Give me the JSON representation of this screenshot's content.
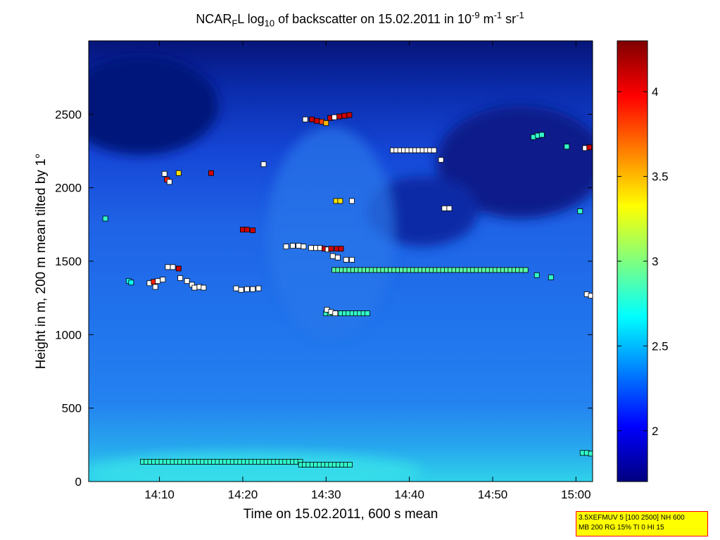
{
  "chart_data": {
    "type": "heatmap",
    "title_parts": {
      "a": "NCAR",
      "b": "F",
      "c": "L log",
      "d": "10",
      "e": " of backscatter on 15.02.2011 in 10",
      "f": "-9",
      "g": " m",
      "h": "-1",
      "i": " sr",
      "j": "-1"
    },
    "xlabel": "Time on 15.02.2011, 600 s mean",
    "ylabel": "Height in m, 200 m mean tilted by 1°",
    "xlim_minutes": [
      841.5,
      902
    ],
    "ylim": [
      0,
      3000
    ],
    "x_ticks": [
      {
        "label": "14:10",
        "min": 850
      },
      {
        "label": "14:20",
        "min": 860
      },
      {
        "label": "14:30",
        "min": 870
      },
      {
        "label": "14:40",
        "min": 880
      },
      {
        "label": "14:50",
        "min": 890
      },
      {
        "label": "15:00",
        "min": 900
      }
    ],
    "y_ticks": [
      0,
      500,
      1000,
      1500,
      2000,
      2500
    ],
    "colorbar": {
      "range": [
        1.7,
        4.3
      ],
      "ticks": [
        2,
        2.5,
        3,
        3.5,
        4
      ],
      "colormap": "jet"
    },
    "cloud_layers": [
      {
        "name": "surface layer",
        "min_start": 848,
        "min_end": 867,
        "height": 135,
        "value": 2.8
      },
      {
        "name": "surface layer",
        "min_start": 867,
        "min_end": 873,
        "height": 115,
        "value": 2.8
      },
      {
        "name": "layer 1450 m",
        "min_start": 871,
        "min_end": 894,
        "height": 1440,
        "value": 2.9
      },
      {
        "name": "layer 1150 m",
        "min_start": 870,
        "min_end": 875,
        "height": 1145,
        "value": 2.8
      },
      {
        "name": "layer 2250 m",
        "min_start": 878,
        "min_end": 883,
        "height": 2255,
        "value": 4.4
      }
    ],
    "cloud_points": [
      [
        843.5,
        1790,
        2.8
      ],
      [
        846.3,
        1365,
        2.7
      ],
      [
        846.6,
        1355,
        2.7
      ],
      [
        848.8,
        1350,
        4.4
      ],
      [
        849.3,
        1360,
        3.9
      ],
      [
        849.5,
        1325,
        4.4
      ],
      [
        849.8,
        1365,
        4.4
      ],
      [
        850.4,
        1375,
        4.4
      ],
      [
        850.6,
        2095,
        4.4
      ],
      [
        850.9,
        2055,
        3.9
      ],
      [
        851.2,
        2040,
        4.4
      ],
      [
        851.0,
        1460,
        4.4
      ],
      [
        851.6,
        1460,
        4.4
      ],
      [
        852.3,
        2100,
        3.4
      ],
      [
        852.3,
        1450,
        4.1
      ],
      [
        852.5,
        1385,
        4.4
      ],
      [
        853.3,
        1365,
        4.4
      ],
      [
        853.9,
        1340,
        4.4
      ],
      [
        854.2,
        1320,
        4.4
      ],
      [
        854.8,
        1325,
        4.4
      ],
      [
        855.3,
        1320,
        4.4
      ],
      [
        856.2,
        2100,
        4.1
      ],
      [
        859.2,
        1315,
        4.4
      ],
      [
        859.8,
        1305,
        4.4
      ],
      [
        860.5,
        1310,
        4.4
      ],
      [
        861.2,
        1310,
        4.4
      ],
      [
        861.9,
        1315,
        4.4
      ],
      [
        860.0,
        1715,
        4.1
      ],
      [
        860.5,
        1715,
        4.1
      ],
      [
        861.2,
        1710,
        4.1
      ],
      [
        862.5,
        2160,
        4.4
      ],
      [
        865.2,
        1600,
        4.4
      ],
      [
        866.0,
        1605,
        4.4
      ],
      [
        866.7,
        1605,
        4.4
      ],
      [
        867.3,
        1600,
        4.4
      ],
      [
        868.2,
        1590,
        4.4
      ],
      [
        868.8,
        1590,
        4.4
      ],
      [
        869.3,
        1590,
        4.4
      ],
      [
        869.8,
        1585,
        4.1
      ],
      [
        870.2,
        1580,
        4.4
      ],
      [
        870.6,
        1585,
        4.1
      ],
      [
        871.3,
        1585,
        4.1
      ],
      [
        871.8,
        1585,
        4.1
      ],
      [
        870.8,
        1535,
        4.4
      ],
      [
        871.4,
        1525,
        4.4
      ],
      [
        872.4,
        1510,
        4.4
      ],
      [
        873.1,
        1510,
        4.4
      ],
      [
        867.5,
        2465,
        4.4
      ],
      [
        868.3,
        2465,
        4.1
      ],
      [
        868.9,
        2455,
        4.1
      ],
      [
        869.5,
        2450,
        3.8
      ],
      [
        870.0,
        2440,
        3.5
      ],
      [
        870.5,
        2475,
        4.1
      ],
      [
        871.0,
        2480,
        4.4
      ],
      [
        871.6,
        2485,
        4.1
      ],
      [
        872.2,
        2490,
        4.1
      ],
      [
        872.8,
        2495,
        4.1
      ],
      [
        871.2,
        1910,
        3.4
      ],
      [
        871.7,
        1910,
        3.4
      ],
      [
        873.1,
        1910,
        4.4
      ],
      [
        870.1,
        1170,
        4.4
      ],
      [
        870.6,
        1155,
        4.4
      ],
      [
        871.1,
        1145,
        4.4
      ],
      [
        883.8,
        2190,
        4.4
      ],
      [
        884.2,
        1860,
        4.4
      ],
      [
        884.8,
        1860,
        4.4
      ],
      [
        894.9,
        2345,
        2.8
      ],
      [
        895.4,
        2355,
        2.8
      ],
      [
        895.9,
        2360,
        2.8
      ],
      [
        895.3,
        1405,
        2.8
      ],
      [
        897.0,
        1390,
        2.8
      ],
      [
        898.9,
        2280,
        2.8
      ],
      [
        900.5,
        1840,
        2.8
      ],
      [
        901.1,
        2270,
        4.4
      ],
      [
        901.6,
        2275,
        4.1
      ],
      [
        900.8,
        195,
        2.8
      ],
      [
        901.3,
        195,
        2.8
      ],
      [
        901.8,
        190,
        2.8
      ],
      [
        901.3,
        1275,
        4.4
      ],
      [
        901.8,
        1265,
        4.4
      ]
    ]
  },
  "info_box": {
    "line1": "3.5XEFMUV 5 [100 2500] NH 600",
    "line2": "MB 200 RG 15% TI 0 HI 15"
  }
}
